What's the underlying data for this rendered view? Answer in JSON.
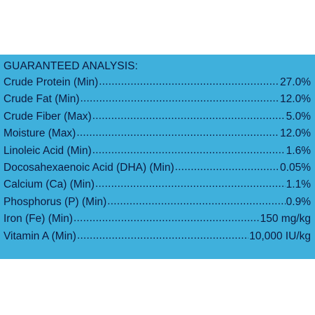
{
  "title": "GUARANTEED ANALYSIS:",
  "rows": [
    {
      "label": "Crude Protein (Min)",
      "value": "27.0%"
    },
    {
      "label": "Crude Fat (Min)",
      "value": "12.0%"
    },
    {
      "label": "Crude Fiber (Max)",
      "value": "5.0%"
    },
    {
      "label": "Moisture (Max)",
      "value": "12.0%"
    },
    {
      "label": "Linoleic Acid (Min)",
      "value": "1.6%"
    },
    {
      "label": "Docosahexaenoic Acid (DHA) (Min)",
      "value": "0.05%"
    },
    {
      "label": "Calcium (Ca) (Min)",
      "value": "1.1%"
    },
    {
      "label": "Phosphorus (P) (Min)",
      "value": "0.9%"
    },
    {
      "label": "Iron (Fe) (Min)",
      "value": "150 mg/kg"
    },
    {
      "label": "Vitamin A (Min)",
      "value": "10,000 IU/kg"
    }
  ],
  "colors": {
    "panel_background": "#3fb0dc",
    "text": "#0c1a40",
    "page_background": "#ffffff"
  }
}
